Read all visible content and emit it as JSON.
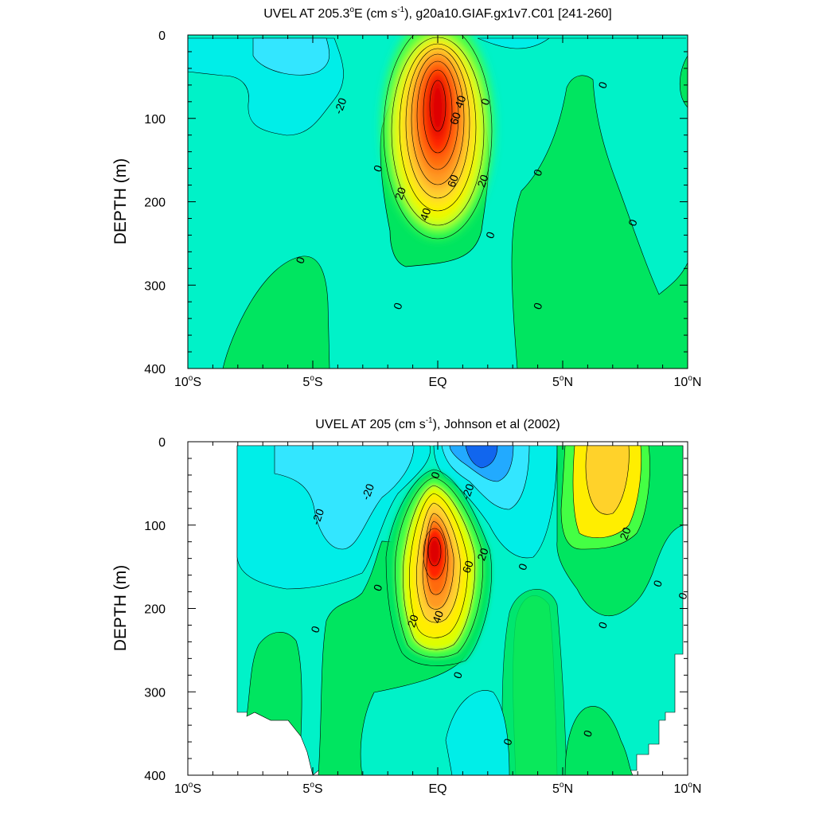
{
  "chart_data": [
    {
      "type": "contour",
      "title_main": "UVEL AT 205.3",
      "title_deg": "o",
      "title_mid": "E (cm s",
      "title_exp": "-1",
      "title_end": "), g20a10.GIAF.gx1v7.C01 [241-260]",
      "ylabel": "DEPTH (m)",
      "xlim": [
        -10,
        10
      ],
      "ylim": [
        0,
        400
      ],
      "x_ticks": [
        {
          "v": -10,
          "num": "10",
          "deg": "o",
          "hemi": "S"
        },
        {
          "v": -5,
          "num": "5",
          "deg": "o",
          "hemi": "S"
        },
        {
          "v": 0,
          "num": "EQ",
          "deg": "",
          "hemi": ""
        },
        {
          "v": 5,
          "num": "5",
          "deg": "o",
          "hemi": "N"
        },
        {
          "v": 10,
          "num": "10",
          "deg": "o",
          "hemi": "N"
        }
      ],
      "y_ticks": [
        "0",
        "100",
        "200",
        "300",
        "400"
      ],
      "contour_interval": 10,
      "core_max": 80,
      "core_lat": 0,
      "core_depth": 120,
      "contour_labels": [
        {
          "text": "-20",
          "lat": -3.9,
          "depth": 85
        },
        {
          "text": "40",
          "lat": 0.9,
          "depth": 80
        },
        {
          "text": "0",
          "lat": 1.9,
          "depth": 80
        },
        {
          "text": "60",
          "lat": 0.7,
          "depth": 100
        },
        {
          "text": "0",
          "lat": -2.4,
          "depth": 160
        },
        {
          "text": "60",
          "lat": 0.6,
          "depth": 175
        },
        {
          "text": "20",
          "lat": 1.8,
          "depth": 175
        },
        {
          "text": "0",
          "lat": 4.0,
          "depth": 165
        },
        {
          "text": "20",
          "lat": -1.5,
          "depth": 190
        },
        {
          "text": "40",
          "lat": -0.5,
          "depth": 215
        },
        {
          "text": "0",
          "lat": 6.6,
          "depth": 60
        },
        {
          "text": "0",
          "lat": 2.1,
          "depth": 240
        },
        {
          "text": "0",
          "lat": 7.8,
          "depth": 225
        },
        {
          "text": "0",
          "lat": -5.5,
          "depth": 270
        },
        {
          "text": "0",
          "lat": -1.6,
          "depth": 325
        },
        {
          "text": "0",
          "lat": 4.0,
          "depth": 325
        }
      ]
    },
    {
      "type": "contour",
      "title_main": "UVEL AT 205 (cm s",
      "title_exp": "-1",
      "title_end": "), Johnson et al (2002)",
      "ylabel": "DEPTH (m)",
      "xlim": [
        -10,
        10
      ],
      "ylim": [
        0,
        400
      ],
      "x_ticks": [
        {
          "v": -10,
          "num": "10",
          "deg": "o",
          "hemi": "S"
        },
        {
          "v": -5,
          "num": "5",
          "deg": "o",
          "hemi": "S"
        },
        {
          "v": 0,
          "num": "EQ",
          "deg": "",
          "hemi": ""
        },
        {
          "v": 5,
          "num": "5",
          "deg": "o",
          "hemi": "N"
        },
        {
          "v": 10,
          "num": "10",
          "deg": "o",
          "hemi": "N"
        }
      ],
      "y_ticks": [
        "0",
        "100",
        "200",
        "300",
        "400"
      ],
      "contour_interval": 10,
      "core_max": 80,
      "core_lat": -0.1,
      "core_depth": 130,
      "contour_labels": [
        {
          "text": "-20",
          "lat": -2.8,
          "depth": 60
        },
        {
          "text": "-20",
          "lat": -4.8,
          "depth": 90
        },
        {
          "text": "0",
          "lat": -0.1,
          "depth": 40
        },
        {
          "text": "-20",
          "lat": 1.2,
          "depth": 60
        },
        {
          "text": "20",
          "lat": 1.8,
          "depth": 135
        },
        {
          "text": "60",
          "lat": 1.2,
          "depth": 150
        },
        {
          "text": "0",
          "lat": 3.4,
          "depth": 150
        },
        {
          "text": "20",
          "lat": 7.5,
          "depth": 110
        },
        {
          "text": "0",
          "lat": -2.4,
          "depth": 175
        },
        {
          "text": "40",
          "lat": 0.0,
          "depth": 210
        },
        {
          "text": "20",
          "lat": -1.0,
          "depth": 215
        },
        {
          "text": "0",
          "lat": 8.8,
          "depth": 170
        },
        {
          "text": "0",
          "lat": 9.8,
          "depth": 185
        },
        {
          "text": "0",
          "lat": -4.9,
          "depth": 225
        },
        {
          "text": "0",
          "lat": 6.6,
          "depth": 220
        },
        {
          "text": "0",
          "lat": 0.8,
          "depth": 280
        },
        {
          "text": "0",
          "lat": 2.8,
          "depth": 360
        },
        {
          "text": "0",
          "lat": 6.0,
          "depth": 350
        }
      ]
    }
  ]
}
